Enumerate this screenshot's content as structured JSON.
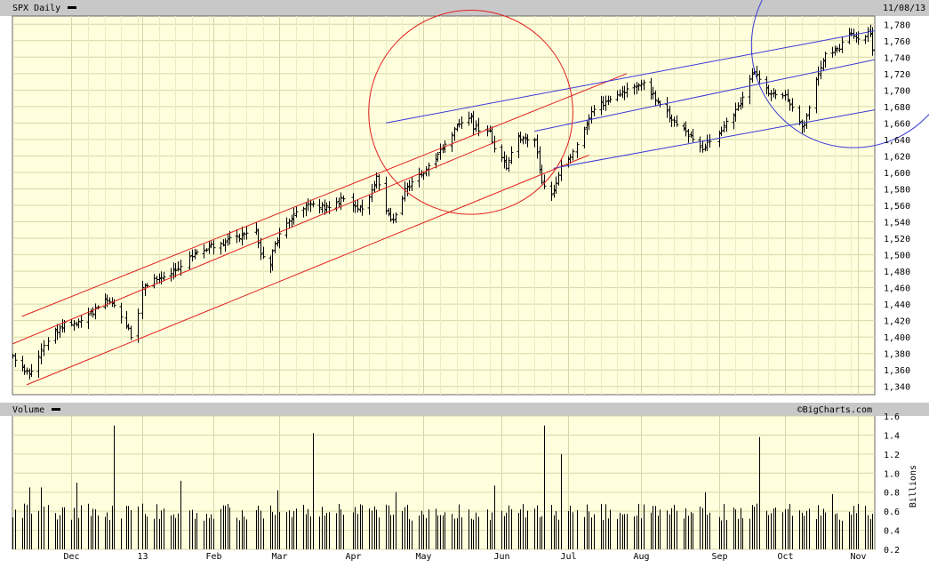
{
  "chart_data": [
    {
      "type": "ohlc",
      "title": "SPX Daily",
      "date_label": "11/08/13",
      "watermark": "©BigCharts.com",
      "ylim": [
        1330,
        1790
      ],
      "yticks": [
        1340,
        1360,
        1380,
        1400,
        1420,
        1440,
        1460,
        1480,
        1500,
        1520,
        1540,
        1560,
        1580,
        1600,
        1620,
        1640,
        1660,
        1680,
        1700,
        1720,
        1740,
        1760,
        1780
      ],
      "xlim": [
        "2012-11-08",
        "2013-11-08"
      ],
      "month_labels": [
        {
          "date": "2012-12-03",
          "label": "Dec"
        },
        {
          "date": "2013-01-02",
          "label": "13"
        },
        {
          "date": "2013-02-01",
          "label": "Feb"
        },
        {
          "date": "2013-03-01",
          "label": "Mar"
        },
        {
          "date": "2013-04-01",
          "label": "Apr"
        },
        {
          "date": "2013-05-01",
          "label": "May"
        },
        {
          "date": "2013-06-03",
          "label": "Jun"
        },
        {
          "date": "2013-07-01",
          "label": "Jul"
        },
        {
          "date": "2013-08-01",
          "label": "Aug"
        },
        {
          "date": "2013-09-03",
          "label": "Sep"
        },
        {
          "date": "2013-10-01",
          "label": "Oct"
        },
        {
          "date": "2013-11-01",
          "label": "Nov"
        }
      ],
      "close_anchors": [
        [
          "2012-11-08",
          1378
        ],
        [
          "2012-11-15",
          1353
        ],
        [
          "2012-11-16",
          1359
        ],
        [
          "2012-11-21",
          1392
        ],
        [
          "2012-11-30",
          1416
        ],
        [
          "2012-12-07",
          1418
        ],
        [
          "2012-12-11",
          1428
        ],
        [
          "2012-12-18",
          1446
        ],
        [
          "2012-12-24",
          1426
        ],
        [
          "2012-12-28",
          1402
        ],
        [
          "2012-12-31",
          1426
        ],
        [
          "2013-01-02",
          1462
        ],
        [
          "2013-01-18",
          1485
        ],
        [
          "2013-01-25",
          1503
        ],
        [
          "2013-02-08",
          1518
        ],
        [
          "2013-02-19",
          1530
        ],
        [
          "2013-02-21",
          1502
        ],
        [
          "2013-02-25",
          1488
        ],
        [
          "2013-02-27",
          1516
        ],
        [
          "2013-03-08",
          1551
        ],
        [
          "2013-03-14",
          1563
        ],
        [
          "2013-03-22",
          1556
        ],
        [
          "2013-03-28",
          1569
        ],
        [
          "2013-04-05",
          1553
        ],
        [
          "2013-04-11",
          1593
        ],
        [
          "2013-04-15",
          1553
        ],
        [
          "2013-04-18",
          1541
        ],
        [
          "2013-04-23",
          1578
        ],
        [
          "2013-04-30",
          1597
        ],
        [
          "2013-05-10",
          1633
        ],
        [
          "2013-05-15",
          1658
        ],
        [
          "2013-05-21",
          1669
        ],
        [
          "2013-05-22",
          1655
        ],
        [
          "2013-05-29",
          1648
        ],
        [
          "2013-05-31",
          1631
        ],
        [
          "2013-06-05",
          1608
        ],
        [
          "2013-06-10",
          1643
        ],
        [
          "2013-06-17",
          1640
        ],
        [
          "2013-06-20",
          1588
        ],
        [
          "2013-06-24",
          1573
        ],
        [
          "2013-06-28",
          1606
        ],
        [
          "2013-07-05",
          1631
        ],
        [
          "2013-07-11",
          1675
        ],
        [
          "2013-07-22",
          1695
        ],
        [
          "2013-08-02",
          1709
        ],
        [
          "2013-08-07",
          1690
        ],
        [
          "2013-08-15",
          1661
        ],
        [
          "2013-08-27",
          1630
        ],
        [
          "2013-09-05",
          1655
        ],
        [
          "2013-09-12",
          1684
        ],
        [
          "2013-09-18",
          1725
        ],
        [
          "2013-09-24",
          1697
        ],
        [
          "2013-10-01",
          1695
        ],
        [
          "2013-10-08",
          1656
        ],
        [
          "2013-10-09",
          1656
        ],
        [
          "2013-10-14",
          1710
        ],
        [
          "2013-10-18",
          1744
        ],
        [
          "2013-10-24",
          1752
        ],
        [
          "2013-10-29",
          1771
        ],
        [
          "2013-11-01",
          1762
        ],
        [
          "2013-11-04",
          1767
        ],
        [
          "2013-11-06",
          1770
        ],
        [
          "2013-11-07",
          1748
        ],
        [
          "2013-11-08",
          1770
        ]
      ],
      "trendlines": [
        {
          "color": "#e0201c",
          "from": [
            "2012-11-12",
            1425
          ],
          "to": [
            "2013-07-26",
            1720
          ]
        },
        {
          "color": "#e0201c",
          "from": [
            "2012-11-05",
            1388
          ],
          "to": [
            "2013-06-03",
            1640
          ]
        },
        {
          "color": "#e0201c",
          "from": [
            "2012-11-14",
            1342
          ],
          "to": [
            "2013-07-10",
            1621
          ]
        },
        {
          "color": "#3a3ad8",
          "from": [
            "2013-04-15",
            1660
          ],
          "to": [
            "2013-11-08",
            1772
          ]
        },
        {
          "color": "#3a3ad8",
          "from": [
            "2013-06-17",
            1650
          ],
          "to": [
            "2013-11-08",
            1737
          ]
        },
        {
          "color": "#3a3ad8",
          "from": [
            "2013-06-25",
            1605
          ],
          "to": [
            "2013-11-08",
            1676
          ]
        }
      ],
      "annotations": [
        {
          "shape": "circle",
          "color": "#e0201c",
          "center": [
            "2013-05-21",
            1673
          ],
          "radius_days": 16
        },
        {
          "shape": "circle",
          "color": "#3a3ad8",
          "center": [
            "2013-10-30",
            1754
          ],
          "radius_days": 16
        }
      ]
    },
    {
      "type": "bar",
      "title": "Volume",
      "ylabel": "Billions",
      "ylim": [
        0.2,
        1.6
      ],
      "yticks": [
        0.2,
        0.4,
        0.6,
        0.8,
        1.0,
        1.2,
        1.4,
        1.6
      ],
      "base_value": 0.58,
      "spikes": [
        {
          "date": "2012-11-15",
          "value": 0.85
        },
        {
          "date": "2012-11-20",
          "value": 0.85
        },
        {
          "date": "2012-12-05",
          "value": 0.9
        },
        {
          "date": "2012-12-21",
          "value": 1.5
        },
        {
          "date": "2013-01-18",
          "value": 0.92
        },
        {
          "date": "2013-02-28",
          "value": 0.82
        },
        {
          "date": "2013-03-15",
          "value": 1.42
        },
        {
          "date": "2013-04-19",
          "value": 0.8
        },
        {
          "date": "2013-05-31",
          "value": 0.87
        },
        {
          "date": "2013-06-21",
          "value": 1.5
        },
        {
          "date": "2013-06-28",
          "value": 1.2
        },
        {
          "date": "2013-08-28",
          "value": 0.8
        },
        {
          "date": "2013-09-20",
          "value": 1.38
        },
        {
          "date": "2013-10-21",
          "value": 0.78
        }
      ]
    }
  ]
}
